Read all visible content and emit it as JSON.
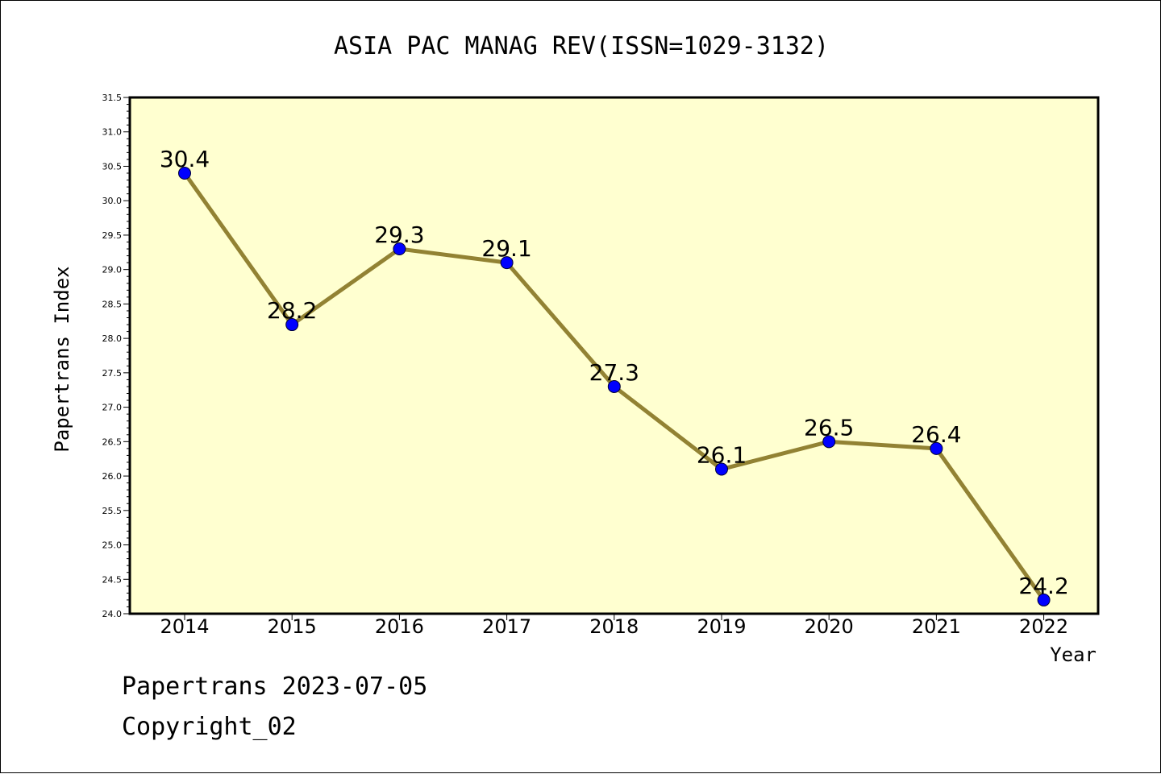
{
  "chart_data": {
    "type": "line",
    "title": "ASIA PAC MANAG REV(ISSN=1029-3132)",
    "xlabel": "Year",
    "ylabel": "Papertrans Index",
    "categories": [
      "2014",
      "2015",
      "2016",
      "2017",
      "2018",
      "2019",
      "2020",
      "2021",
      "2022"
    ],
    "values": [
      30.4,
      28.2,
      29.3,
      29.1,
      27.3,
      26.1,
      26.5,
      26.4,
      24.2
    ],
    "data_labels": [
      "30.4",
      "28.2",
      "29.3",
      "29.1",
      "27.3",
      "26.1",
      "26.5",
      "26.4",
      "24.2"
    ],
    "ylim": [
      24.0,
      31.5
    ],
    "yticks": [
      "24.0",
      "24.5",
      "25.0",
      "25.5",
      "26.0",
      "26.5",
      "27.0",
      "27.5",
      "28.0",
      "28.5",
      "29.0",
      "29.5",
      "30.0",
      "30.5",
      "31.0",
      "31.5"
    ],
    "grid": false,
    "colors": {
      "plot_background": "#ffffd0",
      "line": "#928233",
      "marker": "#0000ff"
    }
  },
  "footer": {
    "line1": "Papertrans 2023-07-05",
    "line2": "Copyright_02"
  }
}
